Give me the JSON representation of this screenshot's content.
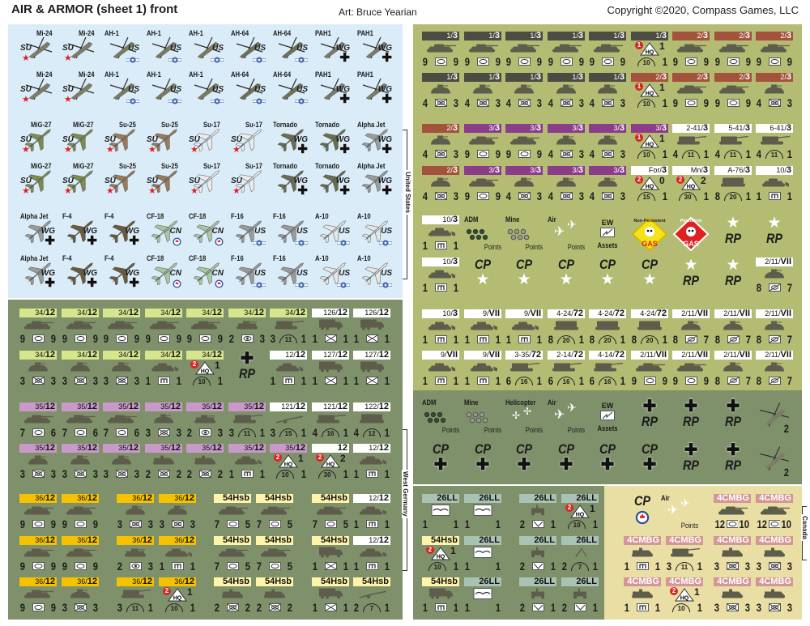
{
  "header": {
    "title": "AIR & ARMOR (sheet 1) front",
    "art": "Art: Bruce Yearian",
    "copyright": "Copyright ©2020, Compass Games, LLC"
  },
  "side_labels": {
    "us": "United States",
    "wg": "West Germany",
    "cn": "Canada"
  },
  "colors": {
    "panel_air": "#d9ecf8",
    "panel_us": "#b3bc72",
    "panel_wg": "#7e916a",
    "panel_cn": "#e9dea3",
    "dk": "#4c4c42",
    "rd": "#a3523c",
    "pu": "#8b3d8b",
    "wh": "#ffffff",
    "lg": "#d7e68c",
    "pk": "#c99ac9",
    "yl": "#f6c200",
    "cr": "#fff5aa",
    "gy": "#a9c2b3",
    "rs": "#d49696",
    "vehicle": "#5e5d4b",
    "star_su": "#e02020"
  },
  "air_colors": {
    "Mi-24": "#7d7c68",
    "AH-1": "#7b7a60",
    "AH-64": "#6f7058",
    "PAH1": "#7a7a6a",
    "MiG-27": "#7c8c4e",
    "Su-25": "#9b7a58",
    "Su-17": "#ececec",
    "Tornado": "#6a6d50",
    "Alpha Jet": "#9c9c98",
    "F-4": "#6d5a3a",
    "CF-18": "#a9c6a2",
    "F-16": "#9a9a9a",
    "A-10": "#e6e6e6"
  },
  "markers": {
    "CP": "CP",
    "RP": "RP",
    "ADM": "ADM",
    "Mine": "Mine",
    "Air": "Air",
    "Helicopter": "Helicopter",
    "Points": "Points",
    "EW": "EW",
    "Assets": "Assets",
    "GAS": "GAS",
    "NonPersistent": "Non-Persistent",
    "Persistent": "Persistent",
    "HQ": "HQ"
  },
  "panels": {
    "air": [
      [
        "A:Mi-24:SU:heli",
        "A:Mi-24:SU:heli",
        "A:AH-1:US:heli",
        "A:AH-1:US:heli",
        "A:AH-1:US:heli",
        "A:AH-64:US:heli",
        "A:AH-64:US:heli",
        "A:PAH1:WG:heli",
        "A:PAH1:WG:heli"
      ],
      [
        "A:Mi-24:SU:heli",
        "A:Mi-24:SU:heli",
        "A:AH-1:US:heli",
        "A:AH-1:US:heli",
        "A:AH-1:US:heli",
        "A:AH-64:US:heli",
        "A:AH-64:US:heli",
        "A:PAH1:WG:heli",
        "A:PAH1:WG:heli"
      ],
      [
        "A:MiG-27:SU:jet",
        "A:MiG-27:SU:jet",
        "A:Su-25:SU:jet",
        "A:Su-25:SU:jet",
        "A:Su-17:SU:jet",
        "A:Su-17:SU:jet",
        "A:Tornado:WG:jet",
        "A:Tornado:WG:jet",
        "A:Alpha Jet:WG:jet"
      ],
      [
        "A:MiG-27:SU:jet",
        "A:MiG-27:SU:jet",
        "A:Su-25:SU:jet",
        "A:Su-25:SU:jet",
        "A:Su-17:SU:jet",
        "A:Su-17:SU:jet",
        "A:Tornado:WG:jet",
        "A:Tornado:WG:jet",
        "A:Alpha Jet:WG:jet"
      ],
      [
        "A:Alpha Jet:WG:jet",
        "A:F-4:WG:jet",
        "A:F-4:WG:jet",
        "A:CF-18:CN:jet",
        "A:CF-18:CN:jet",
        "A:F-16:US:jet",
        "A:F-16:US:jet",
        "A:A-10:US:jet",
        "A:A-10:US:jet"
      ],
      [
        "A:Alpha Jet:WG:jet",
        "A:F-4:WG:jet",
        "A:F-4:WG:jet",
        "A:CF-18:CN:jet",
        "A:CF-18:CN:jet",
        "A:F-16:US:jet",
        "A:F-16:US:jet",
        "A:A-10:US:jet",
        "A:A-10:US:jet"
      ]
    ],
    "us": [
      [
        "U:dk:1/3:mbt:9:arm:9",
        "U:dk:1/3:mbt:9:arm:9",
        "U:dk:1/3:mbt:9:arm:9",
        "U:dk:1/3:mbt:9:arm:9",
        "U:dk:1/3:mbt:9:arm:9",
        "H:dk:1/3:1:1:10:1",
        "U:rd:2/3:mbt:9:arm:9",
        "U:rd:2/3:mbt:9:arm:9",
        "U:rd:2/3:mbt:9:arm:9"
      ],
      [
        "U:dk:1/3:ifv:4:mech:3",
        "U:dk:1/3:ifv:4:mech:3",
        "U:dk:1/3:ifv:4:mech:3",
        "U:dk:1/3:ifv:4:mech:3",
        "U:dk:1/3:ifv:4:mech:3",
        "H:rd:2/3:1:1:10:1",
        "U:rd:2/3:mbt:9:arm:9",
        "U:rd:2/3:mbt:9:arm:9",
        "U:rd:2/3:ifv:4:mech:3"
      ],
      [
        "U:rd:2/3:ifv:4:mech:3",
        "U:pu:3/3:mbt:9:arm:9",
        "U:pu:3/3:mbt:9:arm:9",
        "U:pu:3/3:ifv:4:mech:3",
        "U:pu:3/3:ifv:4:mech:3",
        "H:pu:3/3:1:1:10:1",
        "U:wh:2-41/3:spg:4:a11:1",
        "U:wh:5-41/3:spg:4:a11:1",
        "U:wh:6-41/3:spg:4:a11:1"
      ],
      [
        "U:rd:2/3:ifv:4:mech:3",
        "U:pu:3/3:mbt:9:arm:9",
        "U:pu:3/3:ifv:4:mech:3",
        "U:pu:3/3:ifv:4:mech:3",
        "U:pu:3/3:ifv:4:mech:3",
        "H:wh:For/3:2:0:15:1",
        "H:wh:Mn/3:2:2:30:1",
        "U:wh:A-76/3:mlrs:8:a20:1",
        "U:wh:10/3:cev:1:eng:1"
      ],
      [
        "U:wh:10/3:cev:1:eng:1",
        "M:ADM",
        "M:Mine",
        "M:Air",
        "M:EW",
        "M:GASnp",
        "M:GASp",
        "M:RPstar",
        "M:RPstar"
      ],
      [
        "U:wh:10/3:cev:1:eng:1",
        "M:CPstar",
        "M:CPstar",
        "M:CPstar",
        "M:CPstar",
        "M:CPstar",
        "M:RPstar",
        "M:RPstar",
        "U:wh:2/11/VII:ifv:8:rec:7"
      ],
      [
        "U:wh:10/3:cev:1:eng:1",
        "U:wh:9/VII:cev:1:eng:1",
        "U:wh:9/VII:cev:1:eng:1",
        "U:wh:4-24/72:mlrs:8:a20:1",
        "U:wh:4-24/72:mlrs:8:a20:1",
        "U:wh:4-24/72:mlrs:8:a20:1",
        "U:wh:2/11/VII:ifv:8:rec:7",
        "U:wh:2/11/VII:ifv:8:rec:7",
        "U:wh:2/11/VII:ifv:8:rec:7"
      ],
      [
        "U:wh:9/VII:cev:1:eng:1",
        "U:wh:9/VII:cev:1:eng:1",
        "U:wh:3-35/72:spg:6:a16:1",
        "U:wh:2-14/72:spg:6:a16:1",
        "U:wh:4-14/72:spg:6:a16:1",
        "U:wh:2/11/VII:mbt:9:arm:9",
        "U:wh:2/11/VII:mbt:9:arm:9",
        "U:wh:2/11/VII:ifv:8:rec:7",
        "U:wh:2/11/VII:ifv:8:rec:7"
      ]
    ],
    "wgm": [
      [
        "M:ADM",
        "M:Mine",
        "M:Heli",
        "M:Air",
        "M:EW",
        "M:RPcross",
        "M:RPcross",
        "M:RPcross",
        "M:heli:2"
      ],
      [
        "M:CPcross",
        "M:CPcross",
        "M:CPcross",
        "M:CPcross",
        "M:CPcross",
        "M:CPcross",
        "M:RPcross",
        "M:RPcross",
        "M:heli:2"
      ]
    ],
    "wg": [
      [
        "U:lg:34/12:mbt:9:arm:9",
        "U:lg:34/12:mbt:9:arm:9",
        "U:lg:34/12:mbt:9:arm:9",
        "U:lg:34/12:mbt:9:arm:9",
        "U:lg:34/12:mbt:9:arm:9",
        "U:lg:34/12:lt:2:rec2:3",
        "U:lg:34/12:spg:3:a11:1",
        "U:wh:126/12:truck:1:inf:1",
        "U:wh:126/12:truck:1:inf:1"
      ],
      [
        "U:lg:34/12:ifv:3:mech:3",
        "U:lg:34/12:ifv:3:mech:3",
        "U:lg:34/12:ifv:3:mech:3",
        "U:lg:34/12:cev:1:eng:1",
        "H:lg:34/12:2:1:10:1",
        "M:RPcross",
        "U:wh:12/12:cev:1:eng:1",
        "U:wh:127/12:truck:1:inf:1",
        "U:wh:127/12:truck:1:inf:1"
      ],
      [
        "U:pk:35/12:mbt:7:arm:6",
        "U:pk:35/12:mbt:7:arm:6",
        "U:pk:35/12:mbt:7:arm:6",
        "U:pk:35/12:ifv:3:mech:3",
        "U:pk:35/12:lt:2:rec2:3",
        "U:pk:35/12:spg:3:a11:1",
        "U:wh:121/12:gun:3:a15:1",
        "U:wh:121/12:spg:4:a16:1",
        "U:wh:122/12:mlrs:4:a12:1"
      ],
      [
        "U:pk:35/12:ifv:3:mech:3",
        "U:pk:35/12:ifv:3:mech:3",
        "U:pk:35/12:ifv:3:mech:3",
        "U:pk:35/12:apc:2:mech:2",
        "U:pk:35/12:apc:2:mech:2",
        "U:pk:35/12:cev:1:eng:1",
        "H:pk:35/12:2:1:10:1",
        "H:wh:12:2:2:30:1",
        "U:wh:12/12:cev:1:eng:1"
      ]
    ],
    "wg2": [
      [
        "U:yl:36/12:mbt:9:arm:9",
        "U:yl:36/12:mbt:9:arm:9",
        "U:yl:36/12:ifv:3:mech:3",
        "U:yl:36/12:ifv:3:mech:3",
        "U:cr:54Hsb:mbt:7:arm:5",
        "U:cr:54Hsb:mbt:7:arm:5",
        "U:cr:54Hsb:mbt:7:arm:5",
        "U:wh:12/12:cev:1:eng:1"
      ],
      [
        "U:yl:36/12:mbt:9:arm:9",
        "U:yl:36/12:mbt:9:arm:9",
        "U:yl:36/12:lt:2:rec2:3",
        "U:yl:36/12:cev:1:eng:1",
        "U:cr:54Hsb:mbt:7:arm:5",
        "U:cr:54Hsb:mbt:7:arm:5",
        "U:cr:54Hsb:truck:1:inf:1",
        "U:wh:12/12:cev:1:eng:1"
      ],
      [
        "U:yl:36/12:mbt:9:arm:9",
        "U:yl:36/12:ifv:3:mech:3",
        "U:yl:36/12:spg:3:a11:1",
        "H:yl:36/12:2:1:10:1",
        "U:cr:54Hsb:apc:2:mech:2",
        "U:cr:54Hsb:apc:2:mech:2",
        "U:cr:54Hsb:truck:1:inf:1",
        "U:cr:54Hsb:gun:2:a7:1"
      ]
    ],
    "ll": [
      [
        "U:gy:26LL:bridge:1:none:1",
        "U:gy:26LL:bridge:1:none:1",
        "U:gy:26LL:jeep:2:para:1",
        "H:gy:26LL:2:1:10:1"
      ],
      [
        "H:cr:54Hsb:2:1:10:1",
        "U:gy:26LL:bridge:1:none:1",
        "U:gy:26LL:jeep:2:para:1",
        "U:gy:26LL:mortar:2:a7:1"
      ],
      [
        "U:cr:54Hsb:truck:1:eng:1",
        "U:gy:26LL:bridge:1:none:1",
        "U:gy:26LL:jeep:2:para:1",
        "U:gy:26LL:jeep:2:para:1"
      ]
    ],
    "cn": [
      [
        "M:CPflag",
        "M:AirCN",
        "U:rs:4CMBG:mbt:12:arm:10",
        "U:rs:4CMBG:mbt:12:arm:10"
      ],
      [
        "U:rs:4CMBG:apc:1:eng:1",
        "U:rs:4CMBG:spg:3:a11:1",
        "U:rs:4CMBG:apc:3:mech:3",
        "U:rs:4CMBG:apc:3:mech:3"
      ],
      [
        "U:rs:4CMBG:apc:1:eng:1",
        "H:rs:4CMBG:2:1:10:1",
        "U:rs:4CMBG:apc:3:mech:3",
        "U:rs:4CMBG:apc:3:mech:3"
      ]
    ]
  }
}
